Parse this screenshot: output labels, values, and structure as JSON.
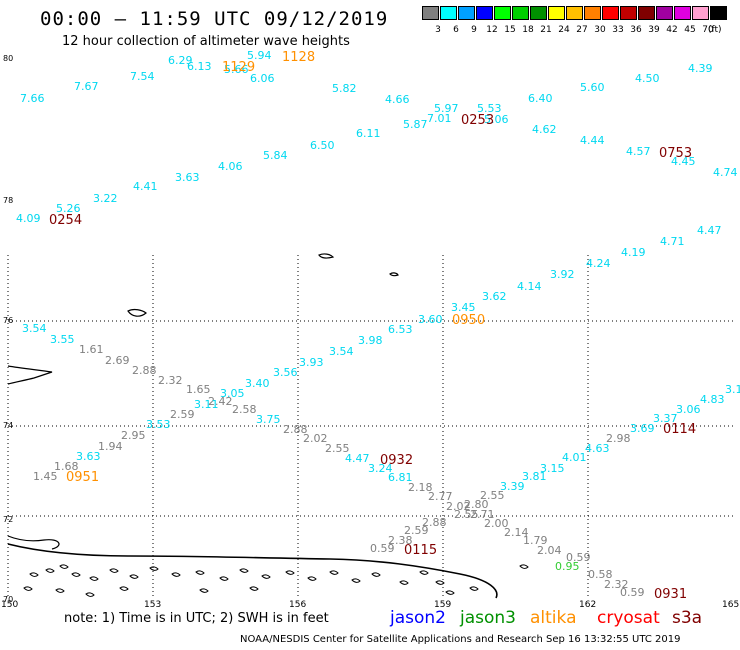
{
  "title": "00:00 – 11:59 UTC 09/12/2019",
  "subtitle": "12 hour collection of altimeter wave heights",
  "legend": {
    "unit": "(ft)",
    "bins": [
      {
        "label": "3",
        "color": "#808080"
      },
      {
        "label": "6",
        "color": "#00ffff"
      },
      {
        "label": "9",
        "color": "#00a0ff"
      },
      {
        "label": "12",
        "color": "#0000ff"
      },
      {
        "label": "15",
        "color": "#00ff00"
      },
      {
        "label": "18",
        "color": "#00d000"
      },
      {
        "label": "21",
        "color": "#009000"
      },
      {
        "label": "24",
        "color": "#ffff00"
      },
      {
        "label": "27",
        "color": "#ffc000"
      },
      {
        "label": "30",
        "color": "#ff8000"
      },
      {
        "label": "33",
        "color": "#ff0000"
      },
      {
        "label": "36",
        "color": "#c00000"
      },
      {
        "label": "39",
        "color": "#800000"
      },
      {
        "label": "42",
        "color": "#a000a0"
      },
      {
        "label": "45",
        "color": "#e000e0"
      },
      {
        "label": "70",
        "color": "#ffa0d0"
      },
      {
        "label": "",
        "color": "#000000"
      }
    ]
  },
  "lat_labels": [
    "80",
    "78",
    "76",
    "74",
    "72",
    "70"
  ],
  "lon_labels": [
    "150",
    "153",
    "156",
    "159",
    "162",
    "165"
  ],
  "colors": {
    "gray": "#808080",
    "cyan": "#00d8f0",
    "orange": "#ff9000",
    "darkred": "#800000",
    "green": "#33cc33"
  },
  "wave_heights": [
    {
      "v": "6.29",
      "c": "cyan"
    },
    {
      "v": "6.13",
      "c": "cyan"
    },
    {
      "v": "5.94",
      "c": "cyan"
    },
    {
      "v": "5.66",
      "c": "cyan"
    },
    {
      "v": "7.54",
      "c": "cyan"
    },
    {
      "v": "6.06",
      "c": "cyan"
    },
    {
      "v": "7.66",
      "c": "cyan"
    },
    {
      "v": "7.67",
      "c": "cyan"
    },
    {
      "v": "5.82",
      "c": "cyan"
    },
    {
      "v": "4.66",
      "c": "cyan"
    },
    {
      "v": "5.97",
      "c": "cyan"
    },
    {
      "v": "5.53",
      "c": "cyan"
    },
    {
      "v": "6.40",
      "c": "cyan"
    },
    {
      "v": "5.87",
      "c": "cyan"
    },
    {
      "v": "7.01",
      "c": "cyan"
    },
    {
      "v": "5.06",
      "c": "cyan"
    },
    {
      "v": "6.11",
      "c": "cyan"
    },
    {
      "v": "4.62",
      "c": "cyan"
    },
    {
      "v": "4.50",
      "c": "cyan"
    },
    {
      "v": "4.39",
      "c": "cyan"
    },
    {
      "v": "5.60",
      "c": "cyan"
    },
    {
      "v": "6.50",
      "c": "cyan"
    },
    {
      "v": "5.84",
      "c": "cyan"
    },
    {
      "v": "4.44",
      "c": "cyan"
    },
    {
      "v": "4.57",
      "c": "cyan"
    },
    {
      "v": "4.45",
      "c": "cyan"
    },
    {
      "v": "4.06",
      "c": "cyan"
    },
    {
      "v": "4.74",
      "c": "cyan"
    },
    {
      "v": "3.63",
      "c": "cyan"
    },
    {
      "v": "4.41",
      "c": "cyan"
    },
    {
      "v": "3.22",
      "c": "cyan"
    },
    {
      "v": "5.26",
      "c": "cyan"
    },
    {
      "v": "4.09",
      "c": "cyan"
    },
    {
      "v": "4.47",
      "c": "cyan"
    },
    {
      "v": "4.71",
      "c": "cyan"
    },
    {
      "v": "4.19",
      "c": "cyan"
    },
    {
      "v": "4.24",
      "c": "cyan"
    },
    {
      "v": "3.92",
      "c": "cyan"
    },
    {
      "v": "4.14",
      "c": "cyan"
    },
    {
      "v": "3.62",
      "c": "cyan"
    },
    {
      "v": "3.45",
      "c": "cyan"
    },
    {
      "v": "3.60",
      "c": "cyan"
    },
    {
      "v": "3.54",
      "c": "cyan"
    },
    {
      "v": "6.53",
      "c": "cyan"
    },
    {
      "v": "3.55",
      "c": "cyan"
    },
    {
      "v": "3.98",
      "c": "cyan"
    },
    {
      "v": "1.61",
      "c": "gray"
    },
    {
      "v": "3.54",
      "c": "cyan"
    },
    {
      "v": "2.69",
      "c": "gray"
    },
    {
      "v": "3.93",
      "c": "cyan"
    },
    {
      "v": "2.88",
      "c": "gray"
    },
    {
      "v": "3.56",
      "c": "cyan"
    },
    {
      "v": "2.32",
      "c": "gray"
    },
    {
      "v": "3.40",
      "c": "cyan"
    },
    {
      "v": "1.65",
      "c": "gray"
    },
    {
      "v": "3.05",
      "c": "cyan"
    },
    {
      "v": "2.42",
      "c": "gray"
    },
    {
      "v": "3.11",
      "c": "cyan"
    },
    {
      "v": "2.58",
      "c": "gray"
    },
    {
      "v": "2.59",
      "c": "gray"
    },
    {
      "v": "3.75",
      "c": "cyan"
    },
    {
      "v": "3.53",
      "c": "cyan"
    },
    {
      "v": "2.88",
      "c": "gray"
    },
    {
      "v": "2.95",
      "c": "gray"
    },
    {
      "v": "2.02",
      "c": "gray"
    },
    {
      "v": "1.94",
      "c": "gray"
    },
    {
      "v": "2.55",
      "c": "gray"
    },
    {
      "v": "3.63",
      "c": "cyan"
    },
    {
      "v": "4.47",
      "c": "cyan"
    },
    {
      "v": "1.68",
      "c": "gray"
    },
    {
      "v": "3.24",
      "c": "cyan"
    },
    {
      "v": "1.45",
      "c": "gray"
    },
    {
      "v": "6.81",
      "c": "cyan"
    },
    {
      "v": "2.18",
      "c": "gray"
    },
    {
      "v": "2.77",
      "c": "gray"
    },
    {
      "v": "2.55",
      "c": "gray"
    },
    {
      "v": "3.39",
      "c": "cyan"
    },
    {
      "v": "3.81",
      "c": "cyan"
    },
    {
      "v": "2.02",
      "c": "gray"
    },
    {
      "v": "2.80",
      "c": "gray"
    },
    {
      "v": "2.55",
      "c": "gray"
    },
    {
      "v": "2.71",
      "c": "gray"
    },
    {
      "v": "3.15",
      "c": "cyan"
    },
    {
      "v": "4.01",
      "c": "cyan"
    },
    {
      "v": "2.98",
      "c": "gray"
    },
    {
      "v": "4.63",
      "c": "cyan"
    },
    {
      "v": "3.69",
      "c": "cyan"
    },
    {
      "v": "3.37",
      "c": "cyan"
    },
    {
      "v": "3.06",
      "c": "cyan"
    },
    {
      "v": "4.83",
      "c": "cyan"
    },
    {
      "v": "3.1",
      "c": "cyan"
    },
    {
      "v": "2.88",
      "c": "gray"
    },
    {
      "v": "2.00",
      "c": "gray"
    },
    {
      "v": "2.59",
      "c": "gray"
    },
    {
      "v": "2.14",
      "c": "gray"
    },
    {
      "v": "2.38",
      "c": "gray"
    },
    {
      "v": "1.79",
      "c": "gray"
    },
    {
      "v": "0.59",
      "c": "gray"
    },
    {
      "v": "2.04",
      "c": "gray"
    },
    {
      "v": "0.59",
      "c": "gray"
    },
    {
      "v": "0.95",
      "c": "green"
    },
    {
      "v": "0.58",
      "c": "gray"
    },
    {
      "v": "2.32",
      "c": "gray"
    },
    {
      "v": "0.59",
      "c": "gray"
    }
  ],
  "pass_times": [
    {
      "v": "1128",
      "c": "orange"
    },
    {
      "v": "1129",
      "c": "orange"
    },
    {
      "v": "0253",
      "c": "darkred"
    },
    {
      "v": "0753",
      "c": "darkred"
    },
    {
      "v": "0254",
      "c": "darkred"
    },
    {
      "v": "0950",
      "c": "orange"
    },
    {
      "v": "0114",
      "c": "darkred"
    },
    {
      "v": "0932",
      "c": "darkred"
    },
    {
      "v": "0951",
      "c": "orange"
    },
    {
      "v": "0115",
      "c": "darkred"
    },
    {
      "v": "0931",
      "c": "darkred"
    }
  ],
  "note": "note: 1) Time is in UTC; 2) SWH is in feet",
  "satellites": [
    {
      "name": "jason2",
      "color": "#0000ff"
    },
    {
      "name": "jason3",
      "color": "#009000"
    },
    {
      "name": "altika",
      "color": "#ff9000"
    },
    {
      "name": "cryosat",
      "color": "#ff0000"
    },
    {
      "name": "s3a",
      "color": "#800000"
    }
  ],
  "credit": "NOAA/NESDIS Center for Satellite Applications and Research   Sep 16 13:32:55 UTC 2019"
}
